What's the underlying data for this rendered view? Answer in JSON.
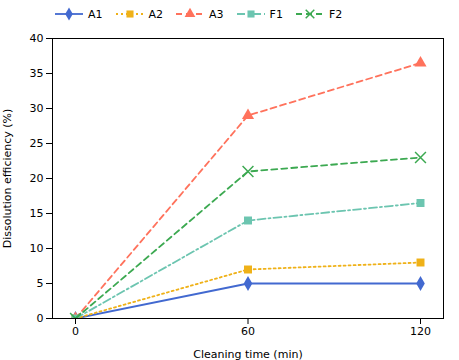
{
  "chart_data": {
    "type": "line",
    "x": [
      0,
      60,
      120
    ],
    "series": [
      {
        "name": "A1",
        "values": [
          0,
          5,
          5
        ],
        "marker": "diamond",
        "line_style": "solid"
      },
      {
        "name": "A2",
        "values": [
          0,
          7,
          8
        ],
        "marker": "square",
        "line_style": "dotted"
      },
      {
        "name": "A3",
        "values": [
          0,
          29,
          36.5
        ],
        "marker": "triangle",
        "line_style": "dashed"
      },
      {
        "name": "F1",
        "values": [
          0,
          14,
          16.5
        ],
        "marker": "square",
        "line_style": "dashdot"
      },
      {
        "name": "F2",
        "values": [
          0,
          21,
          23
        ],
        "marker": "x",
        "line_style": "dashed"
      }
    ],
    "xlabel": "Cleaning time (min)",
    "ylabel": "Dissolution efficiency (%)",
    "xlim": [
      -8,
      128
    ],
    "ylim": [
      0,
      40
    ],
    "xticks": [
      0,
      60,
      120
    ],
    "yticks": [
      0,
      5,
      10,
      15,
      20,
      25,
      30,
      35,
      40
    ],
    "grid": false
  }
}
